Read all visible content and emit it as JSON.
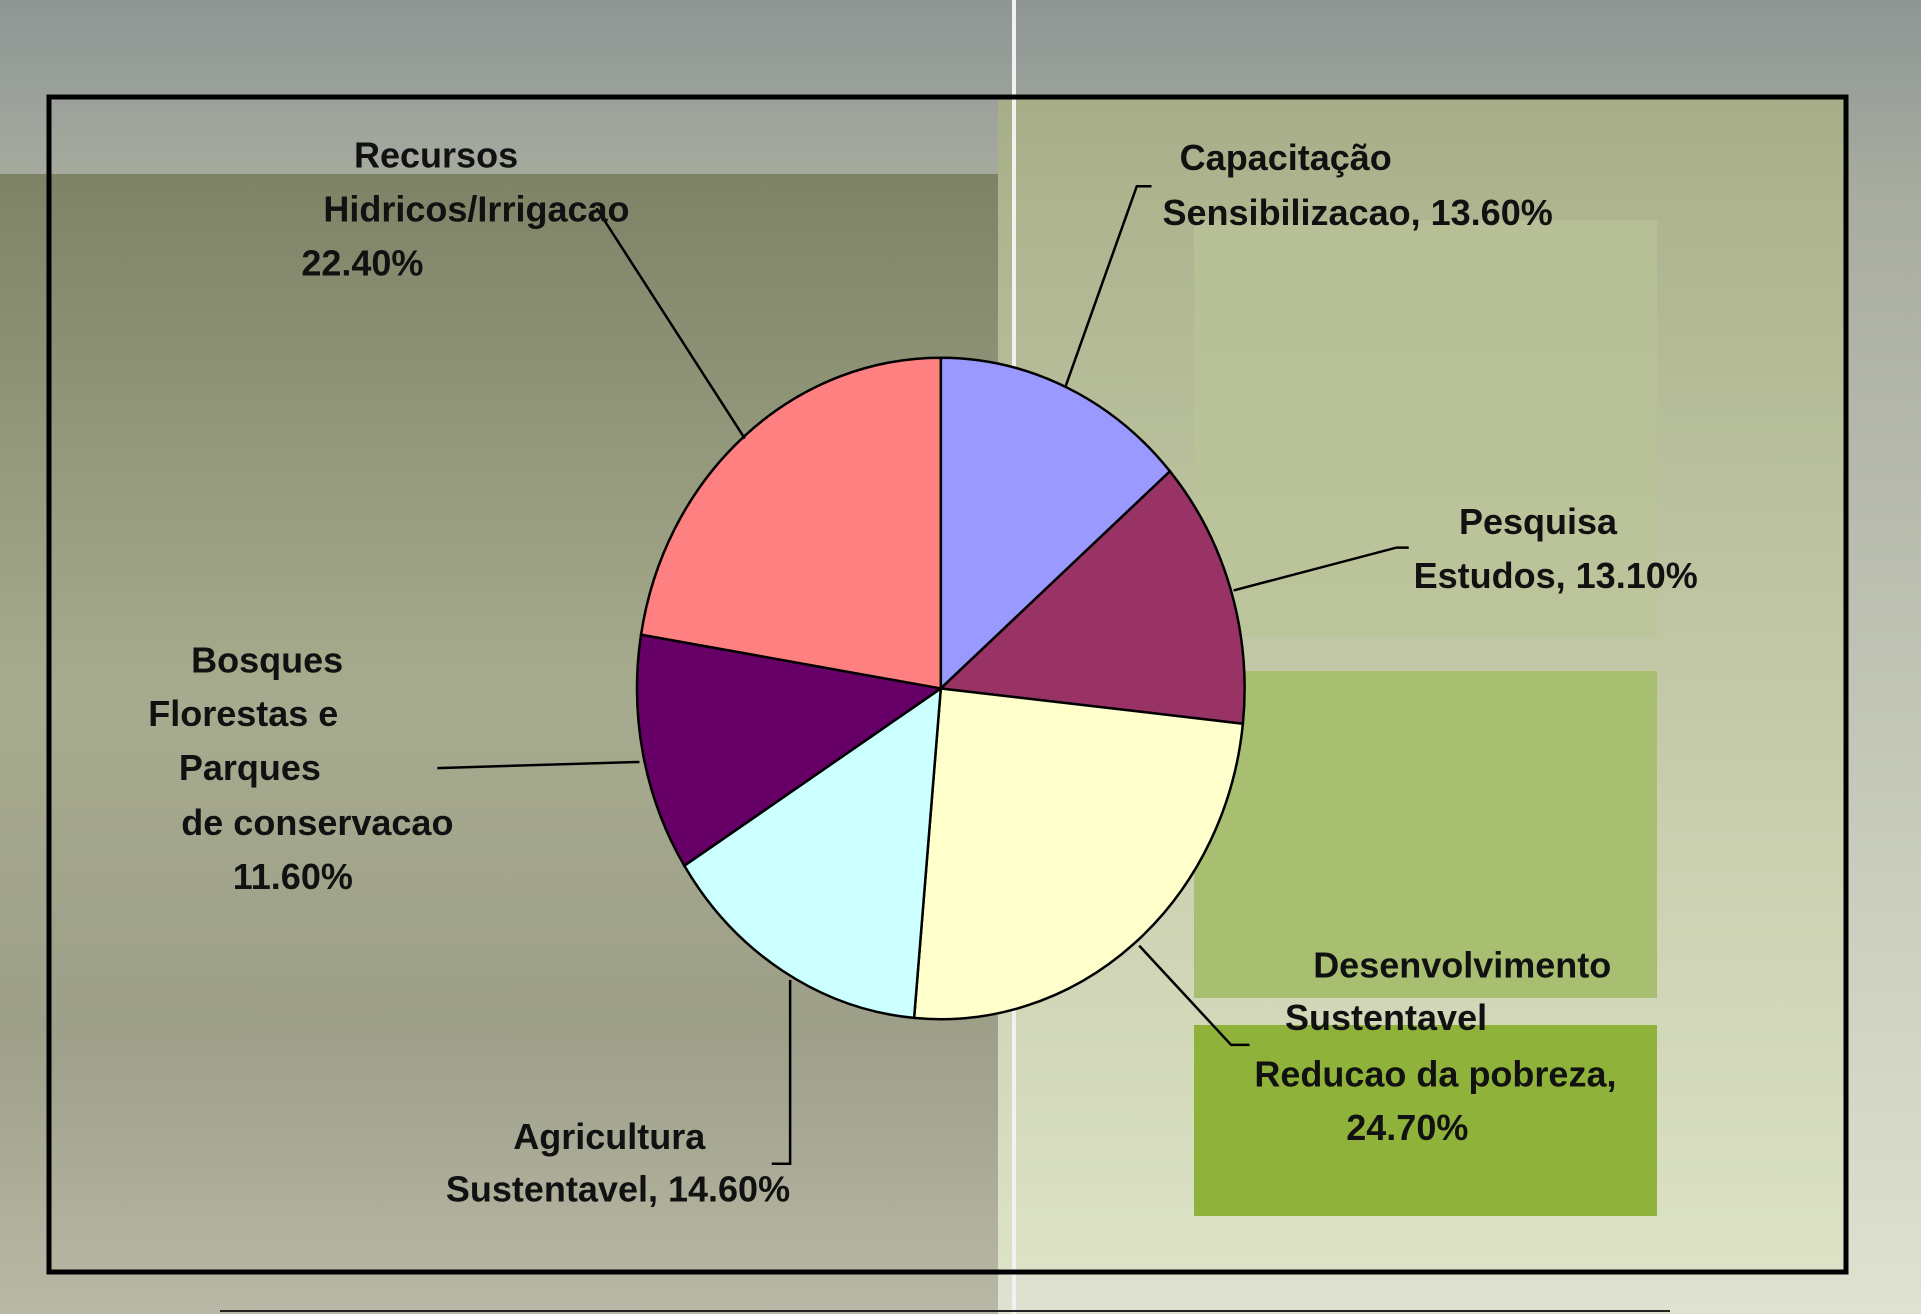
{
  "chart_data": {
    "type": "pie",
    "categories": [
      "Capacitação\nSensibilizacao,",
      "Pesquisa\nEstudos,",
      "Desenvolvimento\nSustentavel\nReducao da pobreza,",
      "Agricultura\nSustentavel,",
      "Bosques\nFlorestas e\nParques\nde conservacao",
      "Recursos\nHidricos/Irrigacao"
    ],
    "values": [
      13.6,
      13.1,
      24.7,
      14.6,
      11.6,
      22.4
    ],
    "value_labels": [
      "13.60%",
      "13.10%",
      "24.70%",
      "14.60%",
      "11.60%",
      "22.40%"
    ],
    "colors": [
      "#9999ff",
      "#993366",
      "#ffffcc",
      "#ccffff",
      "#660066",
      "#ff8080"
    ]
  }
}
